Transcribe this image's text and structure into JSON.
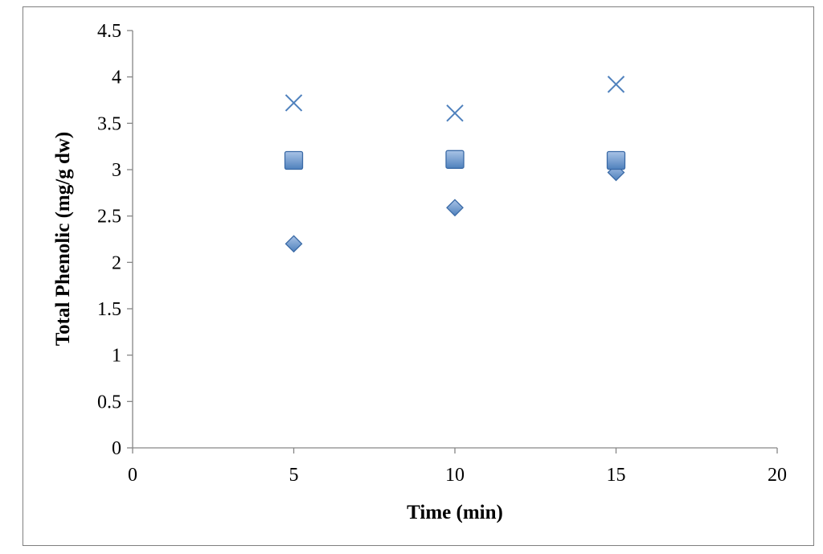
{
  "chart_data": {
    "type": "scatter",
    "title": "",
    "xlabel": "Time (min)",
    "ylabel": "Total Phenolic (mg/g dw)",
    "xlim": [
      0,
      20
    ],
    "ylim": [
      0,
      4.5
    ],
    "x_ticks": [
      0,
      5,
      10,
      15,
      20
    ],
    "x_tick_labels": [
      "0",
      "5",
      "10",
      "15",
      "20"
    ],
    "y_ticks": [
      0,
      0.5,
      1,
      1.5,
      2,
      2.5,
      3,
      3.5,
      4,
      4.5
    ],
    "y_tick_labels": [
      "0",
      "0.5",
      "1",
      "1.5",
      "2",
      "2.5",
      "3",
      "3.5",
      "4",
      "4.5"
    ],
    "grid": false,
    "legend": "none",
    "series": [
      {
        "marker": "diamond",
        "color": "#4f81bd",
        "x": [
          5,
          10,
          15
        ],
        "y": [
          2.2,
          2.59,
          2.97
        ]
      },
      {
        "marker": "square",
        "color": "#4f81bd",
        "x": [
          5,
          10,
          15
        ],
        "y": [
          3.1,
          3.11,
          3.1
        ]
      },
      {
        "marker": "cross",
        "color": "#4f81bd",
        "x": [
          5,
          10,
          15
        ],
        "y": [
          3.72,
          3.61,
          3.92
        ]
      }
    ]
  }
}
